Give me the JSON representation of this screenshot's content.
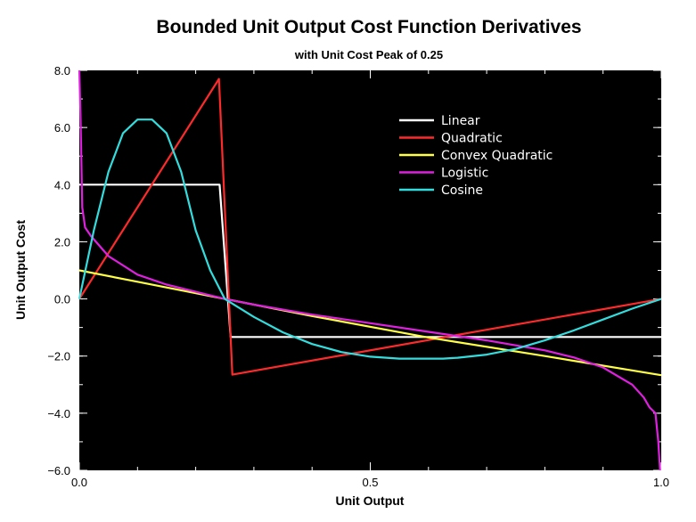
{
  "chart_data": {
    "type": "line",
    "title": "Bounded Unit Output Cost Function Derivatives",
    "subtitle": "with Unit Cost Peak of 0.25",
    "xlabel": "Unit Output",
    "ylabel": "Unit Output Cost",
    "xlim": [
      0.0,
      1.0
    ],
    "ylim": [
      -6.0,
      8.0
    ],
    "x_ticks": [
      0.0,
      0.5,
      1.0
    ],
    "x_tick_labels": [
      "0.0",
      "0.5",
      "1.0"
    ],
    "y_ticks": [
      -6.0,
      -4.0,
      -2.0,
      0.0,
      2.0,
      4.0,
      6.0,
      8.0
    ],
    "y_tick_labels": [
      "−6.0",
      "−4.0",
      "−2.0",
      "0.0",
      "2.0",
      "4.0",
      "6.0",
      "8.0"
    ],
    "grid": false,
    "background": "#000000",
    "legend_position": "top-right",
    "series": [
      {
        "name": "Linear",
        "color": "#ffffff",
        "x": [
          0.0,
          0.24,
          0.241,
          0.26,
          0.261,
          1.0
        ],
        "y": [
          4.0,
          4.0,
          4.0,
          -1.333,
          -1.333,
          -1.333
        ]
      },
      {
        "name": "Quadratic",
        "color": "#ff2a2a",
        "x": [
          0.0,
          0.24,
          0.263,
          1.0
        ],
        "y": [
          0.0,
          7.7,
          -2.65,
          0.0
        ]
      },
      {
        "name": "Convex Quadratic",
        "color": "#ffff44",
        "x": [
          0.0,
          0.1,
          0.25,
          0.4,
          0.6,
          0.8,
          1.0
        ],
        "y": [
          1.0,
          0.6,
          0.0,
          -0.6,
          -1.35,
          -2.0,
          -2.67
        ]
      },
      {
        "name": "Logistic",
        "color": "#e020e0",
        "x": [
          0.0,
          0.002,
          0.005,
          0.01,
          0.02,
          0.05,
          0.1,
          0.15,
          0.2,
          0.25,
          0.3,
          0.4,
          0.5,
          0.6,
          0.7,
          0.8,
          0.85,
          0.9,
          0.95,
          0.97,
          0.98,
          0.99,
          0.995,
          0.998
        ],
        "y": [
          8.0,
          6.5,
          3.2,
          2.5,
          2.2,
          1.5,
          0.85,
          0.5,
          0.25,
          0.0,
          -0.2,
          -0.55,
          -0.85,
          -1.15,
          -1.45,
          -1.8,
          -2.05,
          -2.4,
          -3.0,
          -3.45,
          -3.8,
          -4.0,
          -5.0,
          -6.0
        ]
      },
      {
        "name": "Cosine",
        "color": "#33dddd",
        "x": [
          0.0,
          0.025,
          0.05,
          0.075,
          0.1,
          0.125,
          0.15,
          0.175,
          0.2,
          0.225,
          0.25,
          0.3,
          0.35,
          0.4,
          0.45,
          0.5,
          0.55,
          0.6,
          0.625,
          0.65,
          0.7,
          0.75,
          0.8,
          0.85,
          0.9,
          0.95,
          1.0
        ],
        "y": [
          0.0,
          2.4,
          4.45,
          5.8,
          6.28,
          6.28,
          5.8,
          4.45,
          2.4,
          1.0,
          0.0,
          -0.63,
          -1.17,
          -1.58,
          -1.86,
          -2.02,
          -2.09,
          -2.09,
          -2.09,
          -2.06,
          -1.95,
          -1.75,
          -1.45,
          -1.1,
          -0.72,
          -0.34,
          0.0
        ]
      }
    ]
  }
}
